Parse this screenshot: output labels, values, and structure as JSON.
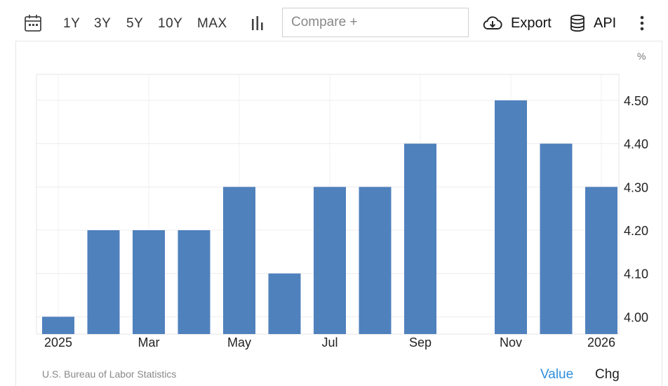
{
  "toolbar": {
    "calendar_icon": "calendar-icon",
    "ranges": [
      "1Y",
      "3Y",
      "5Y",
      "10Y",
      "MAX"
    ],
    "chart_type_icon": "bar-chart-icon",
    "compare_placeholder": "Compare +",
    "export_label": "Export",
    "export_icon": "cloud-download-icon",
    "api_label": "API",
    "api_icon": "database-icon",
    "more_icon": "vertical-dots-icon"
  },
  "footer": {
    "source": "U.S. Bureau of Labor Statistics",
    "value_tab": "Value",
    "chg_tab": "Chg"
  },
  "colors": {
    "bar": "#4f81bd",
    "active_tab": "#2f8fde",
    "grid": "#ececec"
  },
  "chart_data": {
    "type": "bar",
    "unit": "%",
    "x": [
      "2025-01",
      "2025-02",
      "2025-03",
      "2025-04",
      "2025-05",
      "2025-06",
      "2025-07",
      "2025-08",
      "2025-09",
      "2025-10",
      "2025-11",
      "2025-12",
      "2026-01"
    ],
    "values": [
      4.0,
      4.2,
      4.2,
      4.2,
      4.3,
      4.1,
      4.3,
      4.3,
      4.4,
      null,
      4.5,
      4.4,
      4.3
    ],
    "x_tick_labels": [
      {
        "x": "2025-01",
        "label": "2025"
      },
      {
        "x": "2025-03",
        "label": "Mar"
      },
      {
        "x": "2025-05",
        "label": "May"
      },
      {
        "x": "2025-07",
        "label": "Jul"
      },
      {
        "x": "2025-09",
        "label": "Sep"
      },
      {
        "x": "2025-11",
        "label": "Nov"
      },
      {
        "x": "2026-01",
        "label": "2026"
      }
    ],
    "y_ticks": [
      "4.00",
      "4.10",
      "4.20",
      "4.30",
      "4.40",
      "4.50"
    ],
    "ylim": [
      3.96,
      4.56
    ],
    "y_axis_side": "right",
    "grid": true,
    "legend": "none"
  }
}
